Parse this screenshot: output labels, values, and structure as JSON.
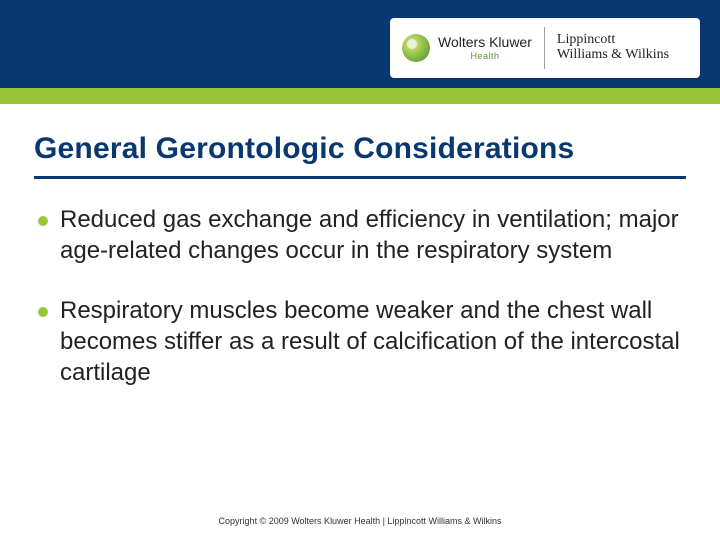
{
  "theme": {
    "header_blue": "#093871",
    "header_green": "#98c73d",
    "background": "#ffffff",
    "title_color": "#093871",
    "title_underline_color": "#093871",
    "bullet_color": "#98c73d",
    "body_text_color": "#222222",
    "footer_text_color": "#333333",
    "title_fontsize": 30,
    "body_fontsize": 24,
    "footer_fontsize": 9
  },
  "logo": {
    "wk_name": "Wolters Kluwer",
    "wk_sub": "Health",
    "lww_line1": "Lippincott",
    "lww_line2": "Williams & Wilkins"
  },
  "slide": {
    "title": "General Gerontologic Considerations",
    "bullets": [
      "Reduced gas exchange and efficiency in ventilation; major age-related changes occur in the respiratory system",
      "Respiratory muscles become weaker and the chest wall becomes stiffer as a result of calcification of the intercostal cartilage"
    ]
  },
  "footer": {
    "text": "Copyright © 2009  Wolters Kluwer Health | Lippincott Williams & Wilkins"
  }
}
